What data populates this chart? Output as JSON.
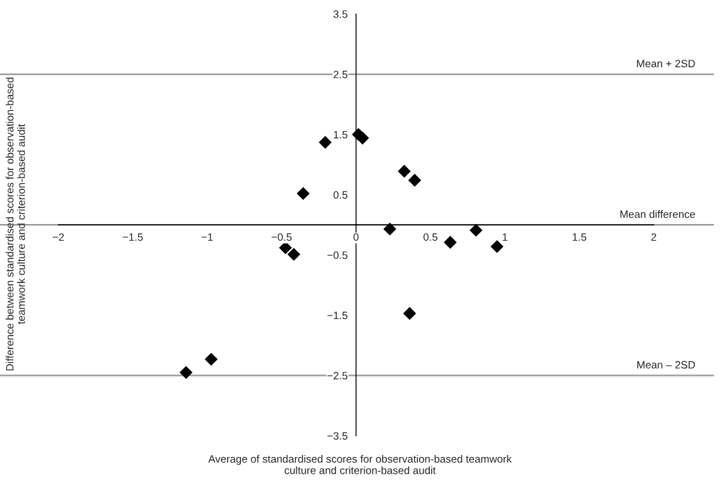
{
  "chart_data": {
    "type": "scatter",
    "xlabel": "Average of standardised scores for observation-based teamwork\nculture and criterion-based audit",
    "ylabel": "Difference between standardised scores for observation-based\nteamwork culture and criterion-based audit",
    "x": [
      -0.207,
      0.016,
      0.044,
      0.324,
      0.394,
      -0.355,
      0.227,
      -0.474,
      -0.418,
      0.633,
      0.806,
      0.947,
      0.36,
      -0.973,
      -1.142
    ],
    "series": [
      {
        "color": "#000000",
        "values": [
          1.37,
          1.5,
          1.44,
          0.89,
          0.74,
          0.52,
          -0.07,
          -0.38,
          -0.49,
          -0.29,
          -0.09,
          -0.36,
          -1.47,
          -2.23,
          -2.45
        ]
      }
    ],
    "marker": "diamond",
    "xlim": [
      -2,
      2
    ],
    "ylim": [
      -3.5,
      3.5
    ],
    "xticks": [
      {
        "value": -2,
        "label": "−2"
      },
      {
        "value": -1.5,
        "label": "−1.5"
      },
      {
        "value": -1,
        "label": "−1"
      },
      {
        "value": -0.5,
        "label": "−0.5"
      },
      0,
      0.5,
      1,
      1.5,
      2
    ],
    "yticks": [
      {
        "value": -3.5,
        "label": "−3.5"
      },
      {
        "value": -2.5,
        "label": "−2.5"
      },
      {
        "value": -1.5,
        "label": "−1.5"
      },
      {
        "value": -0.5,
        "label": "−0.5"
      },
      0.5,
      1.5,
      2.5,
      3.5
    ],
    "ref_lines": [
      {
        "axis": "y",
        "value": 2.5,
        "label": "Mean + 2SD",
        "color": "#999999"
      },
      {
        "axis": "y",
        "value": 0,
        "label": "Mean difference",
        "color": "#999999"
      },
      {
        "axis": "y",
        "value": -2.5,
        "label": "Mean – 2SD",
        "color": "#999999"
      }
    ],
    "grid": false,
    "legend": false
  }
}
